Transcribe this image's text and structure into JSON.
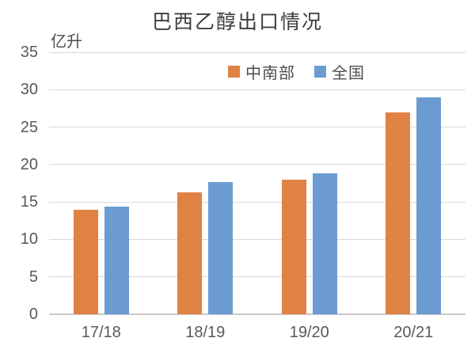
{
  "chart": {
    "title": "巴西乙醇出口情况",
    "unit_label": "亿升"
  },
  "chart_data": {
    "type": "bar",
    "title": "巴西乙醇出口情况",
    "xlabel": "",
    "ylabel": "亿升",
    "categories": [
      "17/18",
      "18/19",
      "19/20",
      "20/21"
    ],
    "series": [
      {
        "name": "中南部",
        "color": "#df8243",
        "values": [
          14.0,
          16.3,
          18.0,
          27.0
        ]
      },
      {
        "name": "全国",
        "color": "#6c9bd2",
        "values": [
          14.4,
          17.7,
          18.8,
          29.0
        ]
      }
    ],
    "ylim": [
      0,
      35
    ],
    "yticks": [
      0,
      5,
      10,
      15,
      20,
      25,
      30,
      35
    ],
    "grid": true,
    "legend_position": "top-center"
  },
  "colors": {
    "gridline": "#d8d8d8",
    "axis_line": "#c9c9c9",
    "tick_text": "#595959",
    "title_text": "#3d3d3d"
  }
}
